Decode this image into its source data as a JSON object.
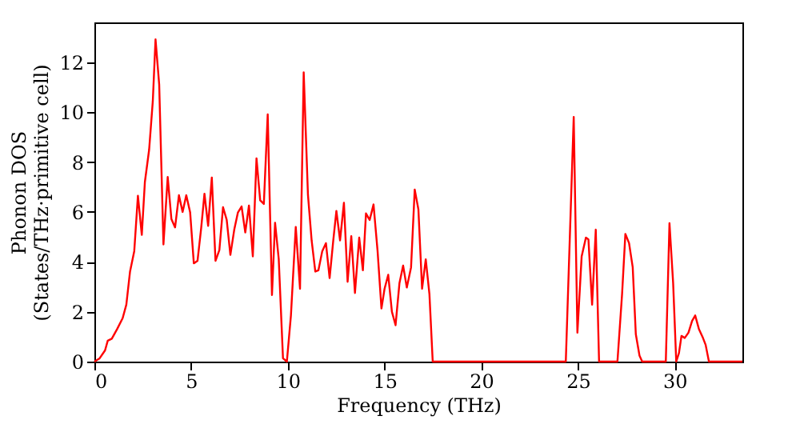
{
  "chart_data": {
    "type": "line",
    "xlabel": "Frequency (THz)",
    "ylabel": "Phonon DOS\n(States/THz·primitive cell)",
    "xlim": [
      0,
      33.5
    ],
    "ylim": [
      0,
      13.6
    ],
    "xticks": [
      0,
      5,
      10,
      15,
      20,
      25,
      30
    ],
    "yticks": [
      0,
      2,
      4,
      6,
      8,
      10,
      12
    ],
    "grid": false,
    "series": [
      {
        "color": "#ff0000",
        "line_style": "solid",
        "marker": "none",
        "x": [
          0,
          0.27,
          0.55,
          0.69,
          0.9,
          1.18,
          1.46,
          1.65,
          1.84,
          2.06,
          2.25,
          2.45,
          2.61,
          2.83,
          3.02,
          3.16,
          3.35,
          3.57,
          3.79,
          3.98,
          4.17,
          4.37,
          4.56,
          4.75,
          4.95,
          5.14,
          5.33,
          5.52,
          5.69,
          5.88,
          6.07,
          6.26,
          6.46,
          6.65,
          6.84,
          7.03,
          7.23,
          7.42,
          7.61,
          7.8,
          7.99,
          8.19,
          8.38,
          8.57,
          8.76,
          8.96,
          9.18,
          9.34,
          9.53,
          9.75,
          9.95,
          10.16,
          10.41,
          10.63,
          10.82,
          11.04,
          11.23,
          11.42,
          11.58,
          11.78,
          11.97,
          12.16,
          12.35,
          12.51,
          12.7,
          12.9,
          13.09,
          13.28,
          13.47,
          13.69,
          13.88,
          14.04,
          14.23,
          14.43,
          14.64,
          14.84,
          15.0,
          15.19,
          15.38,
          15.57,
          15.77,
          15.96,
          16.15,
          16.37,
          16.56,
          16.75,
          16.94,
          17.13,
          17.32,
          17.49,
          24.37,
          24.78,
          24.97,
          25.19,
          25.41,
          25.54,
          25.73,
          25.92,
          26.09,
          27.04,
          27.28,
          27.45,
          27.64,
          27.83,
          27.99,
          28.18,
          28.32,
          29.54,
          29.73,
          29.92,
          30.08,
          30.22,
          30.35,
          30.52,
          30.71,
          30.9,
          31.06,
          31.25,
          31.44,
          31.6,
          31.77,
          33.5
        ],
        "values": [
          0,
          0.13,
          0.45,
          0.84,
          0.92,
          1.31,
          1.74,
          2.28,
          3.6,
          4.43,
          6.65,
          5.08,
          7.2,
          8.5,
          10.45,
          12.92,
          11.1,
          4.7,
          7.4,
          5.72,
          5.38,
          6.67,
          6.0,
          6.67,
          5.98,
          3.94,
          4.04,
          5.35,
          6.73,
          5.44,
          7.38,
          4.04,
          4.47,
          6.19,
          5.68,
          4.28,
          5.29,
          5.98,
          6.22,
          5.18,
          6.26,
          4.22,
          8.15,
          6.47,
          6.32,
          9.91,
          2.67,
          5.57,
          4.11,
          0.13,
          0,
          1.85,
          5.4,
          2.92,
          11.6,
          6.69,
          4.86,
          3.61,
          3.66,
          4.43,
          4.75,
          3.35,
          4.86,
          6.04,
          4.86,
          6.37,
          3.2,
          5.03,
          2.75,
          4.97,
          3.66,
          5.94,
          5.68,
          6.3,
          4.43,
          2.13,
          2.92,
          3.48,
          2.0,
          1.46,
          3.14,
          3.85,
          2.97,
          3.78,
          6.9,
          6.1,
          2.92,
          4.1,
          2.71,
          0,
          0,
          9.81,
          1.16,
          4.22,
          4.97,
          4.9,
          2.28,
          5.29,
          0,
          0,
          2.71,
          5.12,
          4.75,
          3.78,
          1.1,
          0.24,
          0,
          0,
          5.55,
          3.14,
          0,
          0.34,
          1.03,
          0.95,
          1.16,
          1.63,
          1.85,
          1.31,
          0.99,
          0.67,
          0,
          0
        ]
      }
    ]
  }
}
